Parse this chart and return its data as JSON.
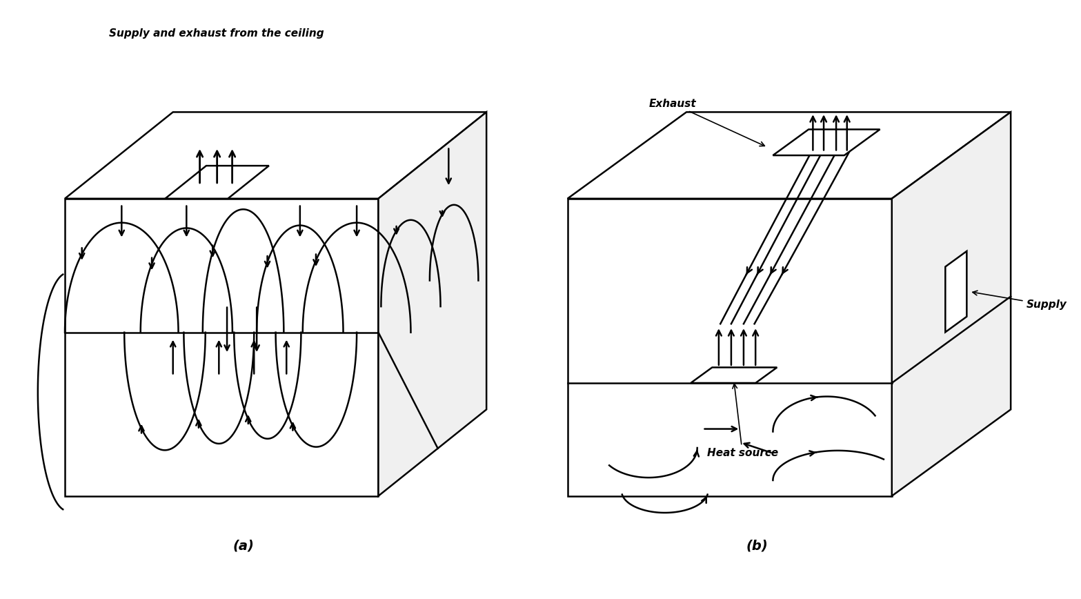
{
  "figure_width": 15.67,
  "figure_height": 8.68,
  "background_color": "#ffffff",
  "line_color": "#000000",
  "line_width": 1.8,
  "arrow_color": "#000000",
  "label_a": "(a)",
  "label_b": "(b)",
  "title_a": "Supply and exhaust from the ceiling",
  "label_exhaust": "Exhaust",
  "label_supply": "Supply",
  "label_heat": "Heat source"
}
